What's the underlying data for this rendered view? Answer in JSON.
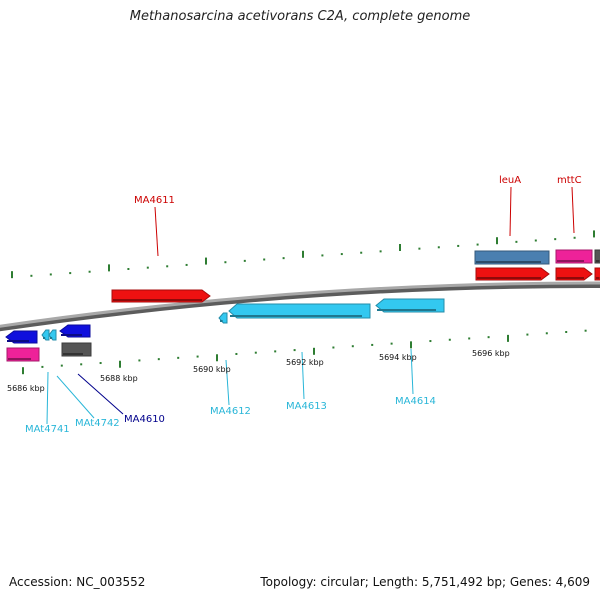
{
  "title": "Methanosarcina acetivorans C2A, complete genome",
  "footer": {
    "accession": "Accession: NC_003552",
    "summary": "Topology: circular; Length: 5,751,492 bp; Genes: 4,609"
  },
  "colors": {
    "backbone": "#8a8a8a",
    "tick": "#2e7d32",
    "label_red": "#cc0000",
    "label_cyan": "#29b6d8",
    "label_navy": "#00008b",
    "gene_red": "#ee1111",
    "gene_blue": "#1010dd",
    "gene_cyan": "#33c8f0",
    "gene_pink": "#ee2299",
    "gene_steel": "#4a7fb0",
    "gene_gray": "#555555"
  },
  "scale_labels": [
    "5686 kbp",
    "5688 kbp",
    "5690 kbp",
    "5692 kbp",
    "5694 kbp",
    "5696 kbp"
  ],
  "gene_labels": [
    {
      "text": "MA4611",
      "color": "label_red"
    },
    {
      "text": "leuA",
      "color": "label_red"
    },
    {
      "text": "mttC",
      "color": "label_red"
    },
    {
      "text": "MAt4741",
      "color": "label_cyan"
    },
    {
      "text": "MAt4742",
      "color": "label_cyan"
    },
    {
      "text": "MA4610",
      "color": "label_navy"
    },
    {
      "text": "MA4612",
      "color": "label_cyan"
    },
    {
      "text": "MA4613",
      "color": "label_cyan"
    },
    {
      "text": "MA4614",
      "color": "label_cyan"
    }
  ],
  "features": [
    {
      "name": "gene-ma4611",
      "color": "gene_red",
      "strand": "forward"
    },
    {
      "name": "gene-leua-upper",
      "color": "gene_steel",
      "strand": "none"
    },
    {
      "name": "gene-leua-lower",
      "color": "gene_red",
      "strand": "forward"
    },
    {
      "name": "gene-mttc-upper",
      "color": "gene_pink",
      "strand": "none"
    },
    {
      "name": "gene-mttc-lower",
      "color": "gene_red",
      "strand": "forward"
    },
    {
      "name": "gene-edge-upper",
      "color": "gene_gray",
      "strand": "none"
    },
    {
      "name": "gene-edge-lower",
      "color": "gene_red",
      "strand": "none"
    },
    {
      "name": "gene-left-blue",
      "color": "gene_blue",
      "strand": "reverse"
    },
    {
      "name": "gene-left-pink",
      "color": "gene_pink",
      "strand": "none"
    },
    {
      "name": "gene-mat4741",
      "color": "gene_cyan",
      "strand": "reverse"
    },
    {
      "name": "gene-mat4742",
      "color": "gene_cyan",
      "strand": "reverse"
    },
    {
      "name": "gene-ma4610",
      "color": "gene_blue",
      "strand": "reverse"
    },
    {
      "name": "gene-ma4610-gray",
      "color": "gene_gray",
      "strand": "none"
    },
    {
      "name": "gene-ma4612",
      "color": "gene_cyan",
      "strand": "reverse"
    },
    {
      "name": "gene-ma4613",
      "color": "gene_cyan",
      "strand": "reverse"
    },
    {
      "name": "gene-ma4614",
      "color": "gene_cyan",
      "strand": "reverse"
    }
  ]
}
